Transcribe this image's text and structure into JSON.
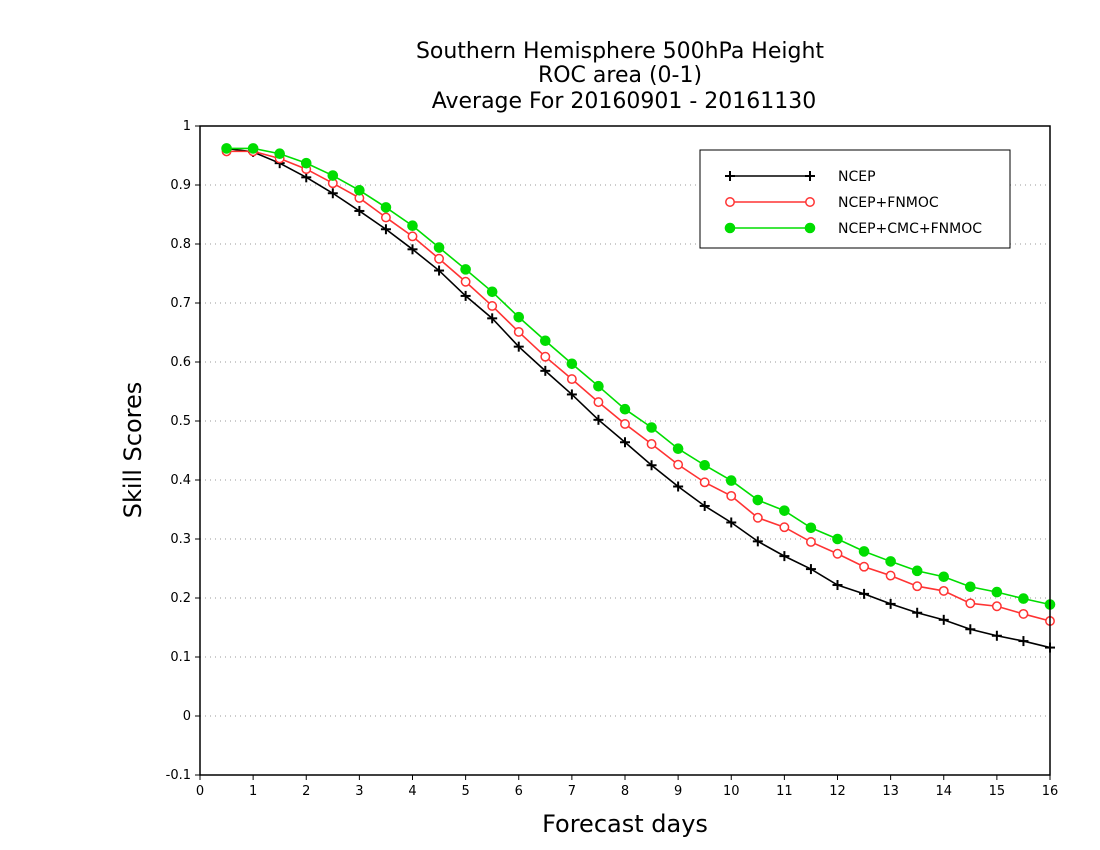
{
  "chart_data": {
    "type": "line",
    "title_lines": [
      "Southern Hemisphere 500hPa Height",
      "ROC area (0-1)",
      "Average For 20160901 - 20161130"
    ],
    "xlabel": "Forecast days",
    "ylabel": "Skill Scores",
    "xlim": [
      0,
      16
    ],
    "ylim": [
      -0.1,
      1
    ],
    "xticks": [
      0,
      1,
      2,
      3,
      4,
      5,
      6,
      7,
      8,
      9,
      10,
      11,
      12,
      13,
      14,
      15,
      16
    ],
    "yticks": [
      -0.1,
      0,
      0.1,
      0.2,
      0.3,
      0.4,
      0.5,
      0.6,
      0.7,
      0.8,
      0.9,
      1
    ],
    "ytick_labels": [
      "-0.1",
      "0",
      "0.1",
      "0.2",
      "0.3",
      "0.4",
      "0.5",
      "0.6",
      "0.7",
      "0.8",
      "0.9",
      "1"
    ],
    "grid": "horizontal-dotted",
    "legend_position": "top-right",
    "x": [
      0.5,
      1,
      1.5,
      2,
      2.5,
      3,
      3.5,
      4,
      4.5,
      5,
      5.5,
      6,
      6.5,
      7,
      7.5,
      8,
      8.5,
      9,
      9.5,
      10,
      10.5,
      11,
      11.5,
      12,
      12.5,
      13,
      13.5,
      14,
      14.5,
      15,
      15.5,
      16
    ],
    "series": [
      {
        "name": "NCEP",
        "color": "#000000",
        "marker": "plus",
        "values": [
          0.962,
          0.956,
          0.937,
          0.913,
          0.886,
          0.856,
          0.825,
          0.791,
          0.755,
          0.712,
          0.674,
          0.626,
          0.585,
          0.545,
          0.502,
          0.464,
          0.425,
          0.389,
          0.356,
          0.328,
          0.296,
          0.271,
          0.249,
          0.222,
          0.207,
          0.19,
          0.175,
          0.163,
          0.147,
          0.136,
          0.127,
          0.116
        ]
      },
      {
        "name": "NCEP+FNMOC",
        "color": "#ff3333",
        "marker": "open-circle",
        "values": [
          0.957,
          0.957,
          0.945,
          0.927,
          0.903,
          0.878,
          0.845,
          0.813,
          0.775,
          0.736,
          0.695,
          0.651,
          0.609,
          0.571,
          0.532,
          0.495,
          0.461,
          0.426,
          0.396,
          0.373,
          0.336,
          0.32,
          0.295,
          0.275,
          0.253,
          0.238,
          0.22,
          0.212,
          0.191,
          0.186,
          0.173,
          0.161
        ]
      },
      {
        "name": "NCEP+CMC+FNMOC",
        "color": "#00dd00",
        "marker": "filled-circle",
        "values": [
          0.962,
          0.962,
          0.953,
          0.937,
          0.916,
          0.891,
          0.862,
          0.831,
          0.794,
          0.757,
          0.719,
          0.676,
          0.636,
          0.597,
          0.559,
          0.52,
          0.489,
          0.453,
          0.425,
          0.399,
          0.366,
          0.348,
          0.319,
          0.3,
          0.279,
          0.262,
          0.246,
          0.236,
          0.219,
          0.21,
          0.199,
          0.189
        ]
      }
    ]
  }
}
